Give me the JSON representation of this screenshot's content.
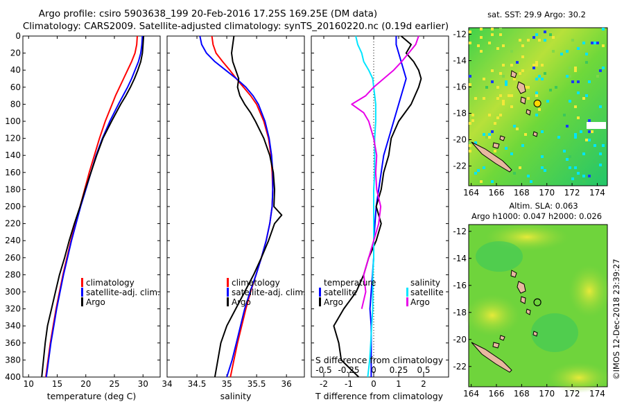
{
  "titles": {
    "line1": "Argo profile: csiro 5903638_199 20-Feb-2016 17.25S 169.25E (DM data)",
    "line2": "Climatology: CARS2009. Satellite-adjusted climatology: synTS_20160220.nc (0.19d earlier)"
  },
  "colors": {
    "climatology": "#ff0000",
    "satellite": "#0000ff",
    "argo": "#000000",
    "sat_salinity": "#00e5ff",
    "argo_salinity": "#e800e8",
    "zero_line": "#000000"
  },
  "chart_data": [
    {
      "id": "temperature",
      "type": "line",
      "xlabel": "temperature (deg C)",
      "ylabel": "",
      "xlim": [
        9,
        33
      ],
      "ylim": [
        400,
        0
      ],
      "xticks": [
        10,
        15,
        20,
        25,
        30
      ],
      "yticks": [
        0,
        20,
        40,
        60,
        80,
        100,
        120,
        140,
        160,
        180,
        200,
        220,
        240,
        260,
        280,
        300,
        320,
        340,
        360,
        380,
        400
      ],
      "legend": [
        "climatology",
        "satellite-adj. clim.",
        "Argo"
      ],
      "series": [
        {
          "name": "climatology",
          "color": "#ff0000",
          "depth": [
            0,
            10,
            20,
            30,
            40,
            50,
            60,
            70,
            80,
            100,
            120,
            140,
            160,
            180,
            200,
            220,
            240,
            260,
            280,
            300,
            320,
            340,
            360,
            380,
            400
          ],
          "values": [
            29.0,
            28.9,
            28.6,
            28.0,
            27.3,
            26.6,
            25.9,
            25.2,
            24.6,
            23.4,
            22.4,
            21.5,
            20.6,
            19.8,
            19.0,
            18.2,
            17.4,
            16.7,
            16.0,
            15.4,
            14.8,
            14.3,
            13.8,
            13.4,
            13.0
          ]
        },
        {
          "name": "satellite-adj. clim.",
          "color": "#0000ff",
          "depth": [
            0,
            10,
            20,
            30,
            40,
            50,
            60,
            70,
            80,
            100,
            120,
            140,
            160,
            180,
            200,
            220,
            240,
            260,
            280,
            300,
            320,
            340,
            360,
            380,
            400
          ],
          "values": [
            29.9,
            29.8,
            29.6,
            29.2,
            28.6,
            28.0,
            27.3,
            26.5,
            25.7,
            24.2,
            22.9,
            21.8,
            20.9,
            20.0,
            19.1,
            18.3,
            17.5,
            16.8,
            16.1,
            15.5,
            14.9,
            14.4,
            13.9,
            13.5,
            13.1
          ]
        },
        {
          "name": "Argo",
          "color": "#000000",
          "depth": [
            0,
            10,
            20,
            30,
            40,
            50,
            60,
            70,
            80,
            100,
            120,
            140,
            160,
            180,
            200,
            220,
            240,
            260,
            280,
            300,
            320,
            340,
            360,
            380,
            400
          ],
          "values": [
            30.1,
            30.0,
            29.9,
            29.6,
            29.1,
            28.5,
            27.8,
            27.0,
            26.1,
            24.5,
            23.0,
            21.9,
            20.9,
            19.9,
            19.0,
            18.0,
            17.1,
            16.3,
            15.4,
            14.7,
            14.0,
            13.3,
            12.9,
            12.6,
            12.3
          ]
        }
      ]
    },
    {
      "id": "salinity",
      "type": "line",
      "xlabel": "salinity",
      "ylabel": "",
      "xlim": [
        34,
        36.3
      ],
      "ylim": [
        400,
        0
      ],
      "xticks": [
        34,
        34.5,
        35,
        35.5,
        36
      ],
      "legend": [
        "climatology",
        "satellite-adj. clim.",
        "Argo"
      ],
      "series": [
        {
          "name": "climatology",
          "color": "#ff0000",
          "depth": [
            0,
            10,
            20,
            30,
            40,
            50,
            60,
            70,
            80,
            100,
            120,
            140,
            160,
            180,
            200,
            220,
            240,
            260,
            280,
            300,
            320,
            340,
            360,
            380,
            400
          ],
          "values": [
            34.75,
            34.77,
            34.82,
            34.93,
            35.05,
            35.16,
            35.28,
            35.4,
            35.5,
            35.62,
            35.7,
            35.74,
            35.76,
            35.77,
            35.76,
            35.72,
            35.66,
            35.58,
            35.49,
            35.4,
            35.32,
            35.25,
            35.18,
            35.12,
            35.06
          ]
        },
        {
          "name": "satellite-adj. clim.",
          "color": "#0000ff",
          "depth": [
            0,
            10,
            20,
            30,
            40,
            50,
            60,
            70,
            80,
            100,
            120,
            140,
            160,
            180,
            200,
            220,
            240,
            260,
            280,
            300,
            320,
            340,
            360,
            380,
            400
          ],
          "values": [
            34.55,
            34.58,
            34.66,
            34.8,
            34.98,
            35.16,
            35.32,
            35.44,
            35.53,
            35.64,
            35.71,
            35.75,
            35.77,
            35.77,
            35.76,
            35.72,
            35.66,
            35.58,
            35.49,
            35.39,
            35.3,
            35.23,
            35.16,
            35.09,
            35.0
          ]
        },
        {
          "name": "Argo",
          "color": "#000000",
          "depth": [
            0,
            10,
            20,
            30,
            40,
            50,
            60,
            70,
            80,
            90,
            100,
            120,
            140,
            160,
            180,
            200,
            210,
            220,
            240,
            260,
            280,
            300,
            320,
            340,
            360,
            380,
            400
          ],
          "values": [
            35.12,
            35.1,
            35.08,
            35.1,
            35.15,
            35.2,
            35.18,
            35.22,
            35.3,
            35.4,
            35.48,
            35.62,
            35.72,
            35.78,
            35.8,
            35.79,
            35.92,
            35.8,
            35.7,
            35.58,
            35.45,
            35.3,
            35.15,
            35.0,
            34.9,
            34.85,
            34.8
          ]
        }
      ]
    },
    {
      "id": "difference",
      "type": "line",
      "xlabel": "T difference from climatology",
      "x2label": "S difference from climatology",
      "xlim": [
        -2.5,
        3
      ],
      "x2lim": [
        -0.625,
        0.75
      ],
      "ylim": [
        400,
        0
      ],
      "xticks": [
        -2,
        -1,
        0,
        1,
        2
      ],
      "x2ticks": [
        -0.5,
        -0.25,
        0,
        0.25,
        0.5
      ],
      "x2ticklabels": [
        "-0.5",
        "-0.25",
        "0",
        "0.25",
        "0.5"
      ],
      "legend_left_title": "temperature",
      "legend_right_title": "salinity",
      "legend_left": [
        "satellite",
        "Argo"
      ],
      "legend_right": [
        "satellite",
        "Argo"
      ],
      "series": [
        {
          "name": "temperature satellite",
          "color": "#0000ff",
          "axis": "T",
          "depth": [
            0,
            10,
            20,
            30,
            40,
            50,
            60,
            80,
            100,
            120,
            140,
            160,
            180,
            200,
            220,
            240,
            260,
            280,
            300,
            320,
            340,
            360,
            380,
            400
          ],
          "values": [
            0.9,
            0.9,
            1.0,
            1.1,
            1.2,
            1.3,
            1.2,
            1.0,
            0.8,
            0.6,
            0.4,
            0.3,
            0.2,
            0.1,
            0.05,
            0.0,
            0.0,
            -0.05,
            -0.1,
            -0.15,
            -0.1,
            -0.1,
            -0.1,
            -0.1
          ]
        },
        {
          "name": "temperature Argo",
          "color": "#000000",
          "axis": "T",
          "depth": [
            0,
            10,
            20,
            30,
            40,
            50,
            60,
            80,
            100,
            120,
            140,
            160,
            180,
            200,
            220,
            240,
            260,
            280,
            300,
            320,
            340,
            360,
            380,
            400
          ],
          "values": [
            1.1,
            1.5,
            1.3,
            1.6,
            1.8,
            1.9,
            1.8,
            1.5,
            1.0,
            0.7,
            0.6,
            0.4,
            0.3,
            0.1,
            0.3,
            0.1,
            -0.2,
            -0.4,
            -0.7,
            -1.2,
            -1.6,
            -1.4,
            -1.3,
            -0.6
          ]
        },
        {
          "name": "salinity satellite",
          "color": "#00e5ff",
          "axis": "S",
          "depth": [
            0,
            10,
            20,
            30,
            40,
            50,
            60,
            80,
            100,
            120,
            140,
            160,
            180,
            200,
            220,
            240,
            260,
            280,
            300,
            320,
            340,
            360,
            380,
            400
          ],
          "values": [
            -0.18,
            -0.16,
            -0.12,
            -0.1,
            -0.05,
            -0.01,
            0.0,
            0.02,
            0.02,
            0.01,
            0.01,
            0.01,
            0.0,
            0.0,
            0.0,
            0.0,
            0.0,
            -0.01,
            -0.01,
            -0.01,
            -0.02,
            -0.03,
            -0.04,
            -0.06
          ]
        },
        {
          "name": "salinity Argo",
          "color": "#e800e8",
          "axis": "S",
          "depth": [
            0,
            10,
            20,
            30,
            40,
            50,
            60,
            70,
            80,
            90,
            100,
            120,
            140,
            160,
            180,
            200,
            220,
            240,
            260,
            280,
            300,
            320
          ],
          "values": [
            0.45,
            0.42,
            0.35,
            0.28,
            0.2,
            0.1,
            0.0,
            -0.08,
            -0.22,
            -0.1,
            -0.05,
            0.0,
            0.03,
            0.02,
            0.03,
            0.07,
            0.05,
            0.0,
            -0.05,
            -0.1,
            -0.08,
            -0.12
          ]
        }
      ]
    }
  ],
  "maps": {
    "sst": {
      "title": "sat. SST: 29.9 Argo: 30.2",
      "xticks": [
        "164",
        "166",
        "168",
        "170",
        "172",
        "174"
      ],
      "yticks": [
        "-12",
        "-14",
        "-16",
        "-18",
        "-20",
        "-22"
      ],
      "xlim": [
        163.8,
        174.8
      ],
      "ylim": [
        -23.5,
        -11.5
      ],
      "argo_position": {
        "lon": 169.25,
        "lat": -17.25
      }
    },
    "sla": {
      "title_line1": "Altim. SLA: 0.063",
      "title_line2": "Argo h1000: 0.047 h2000: 0.026",
      "xticks": [
        "164",
        "166",
        "168",
        "170",
        "172",
        "174"
      ],
      "yticks": [
        "-12",
        "-14",
        "-16",
        "-18",
        "-20",
        "-22"
      ],
      "xlim": [
        163.8,
        174.8
      ],
      "ylim": [
        -23.5,
        -11.5
      ],
      "argo_position": {
        "lon": 169.25,
        "lat": -17.25
      }
    }
  },
  "credit": "©IMOS 12-Dec-2018 23:39:27"
}
